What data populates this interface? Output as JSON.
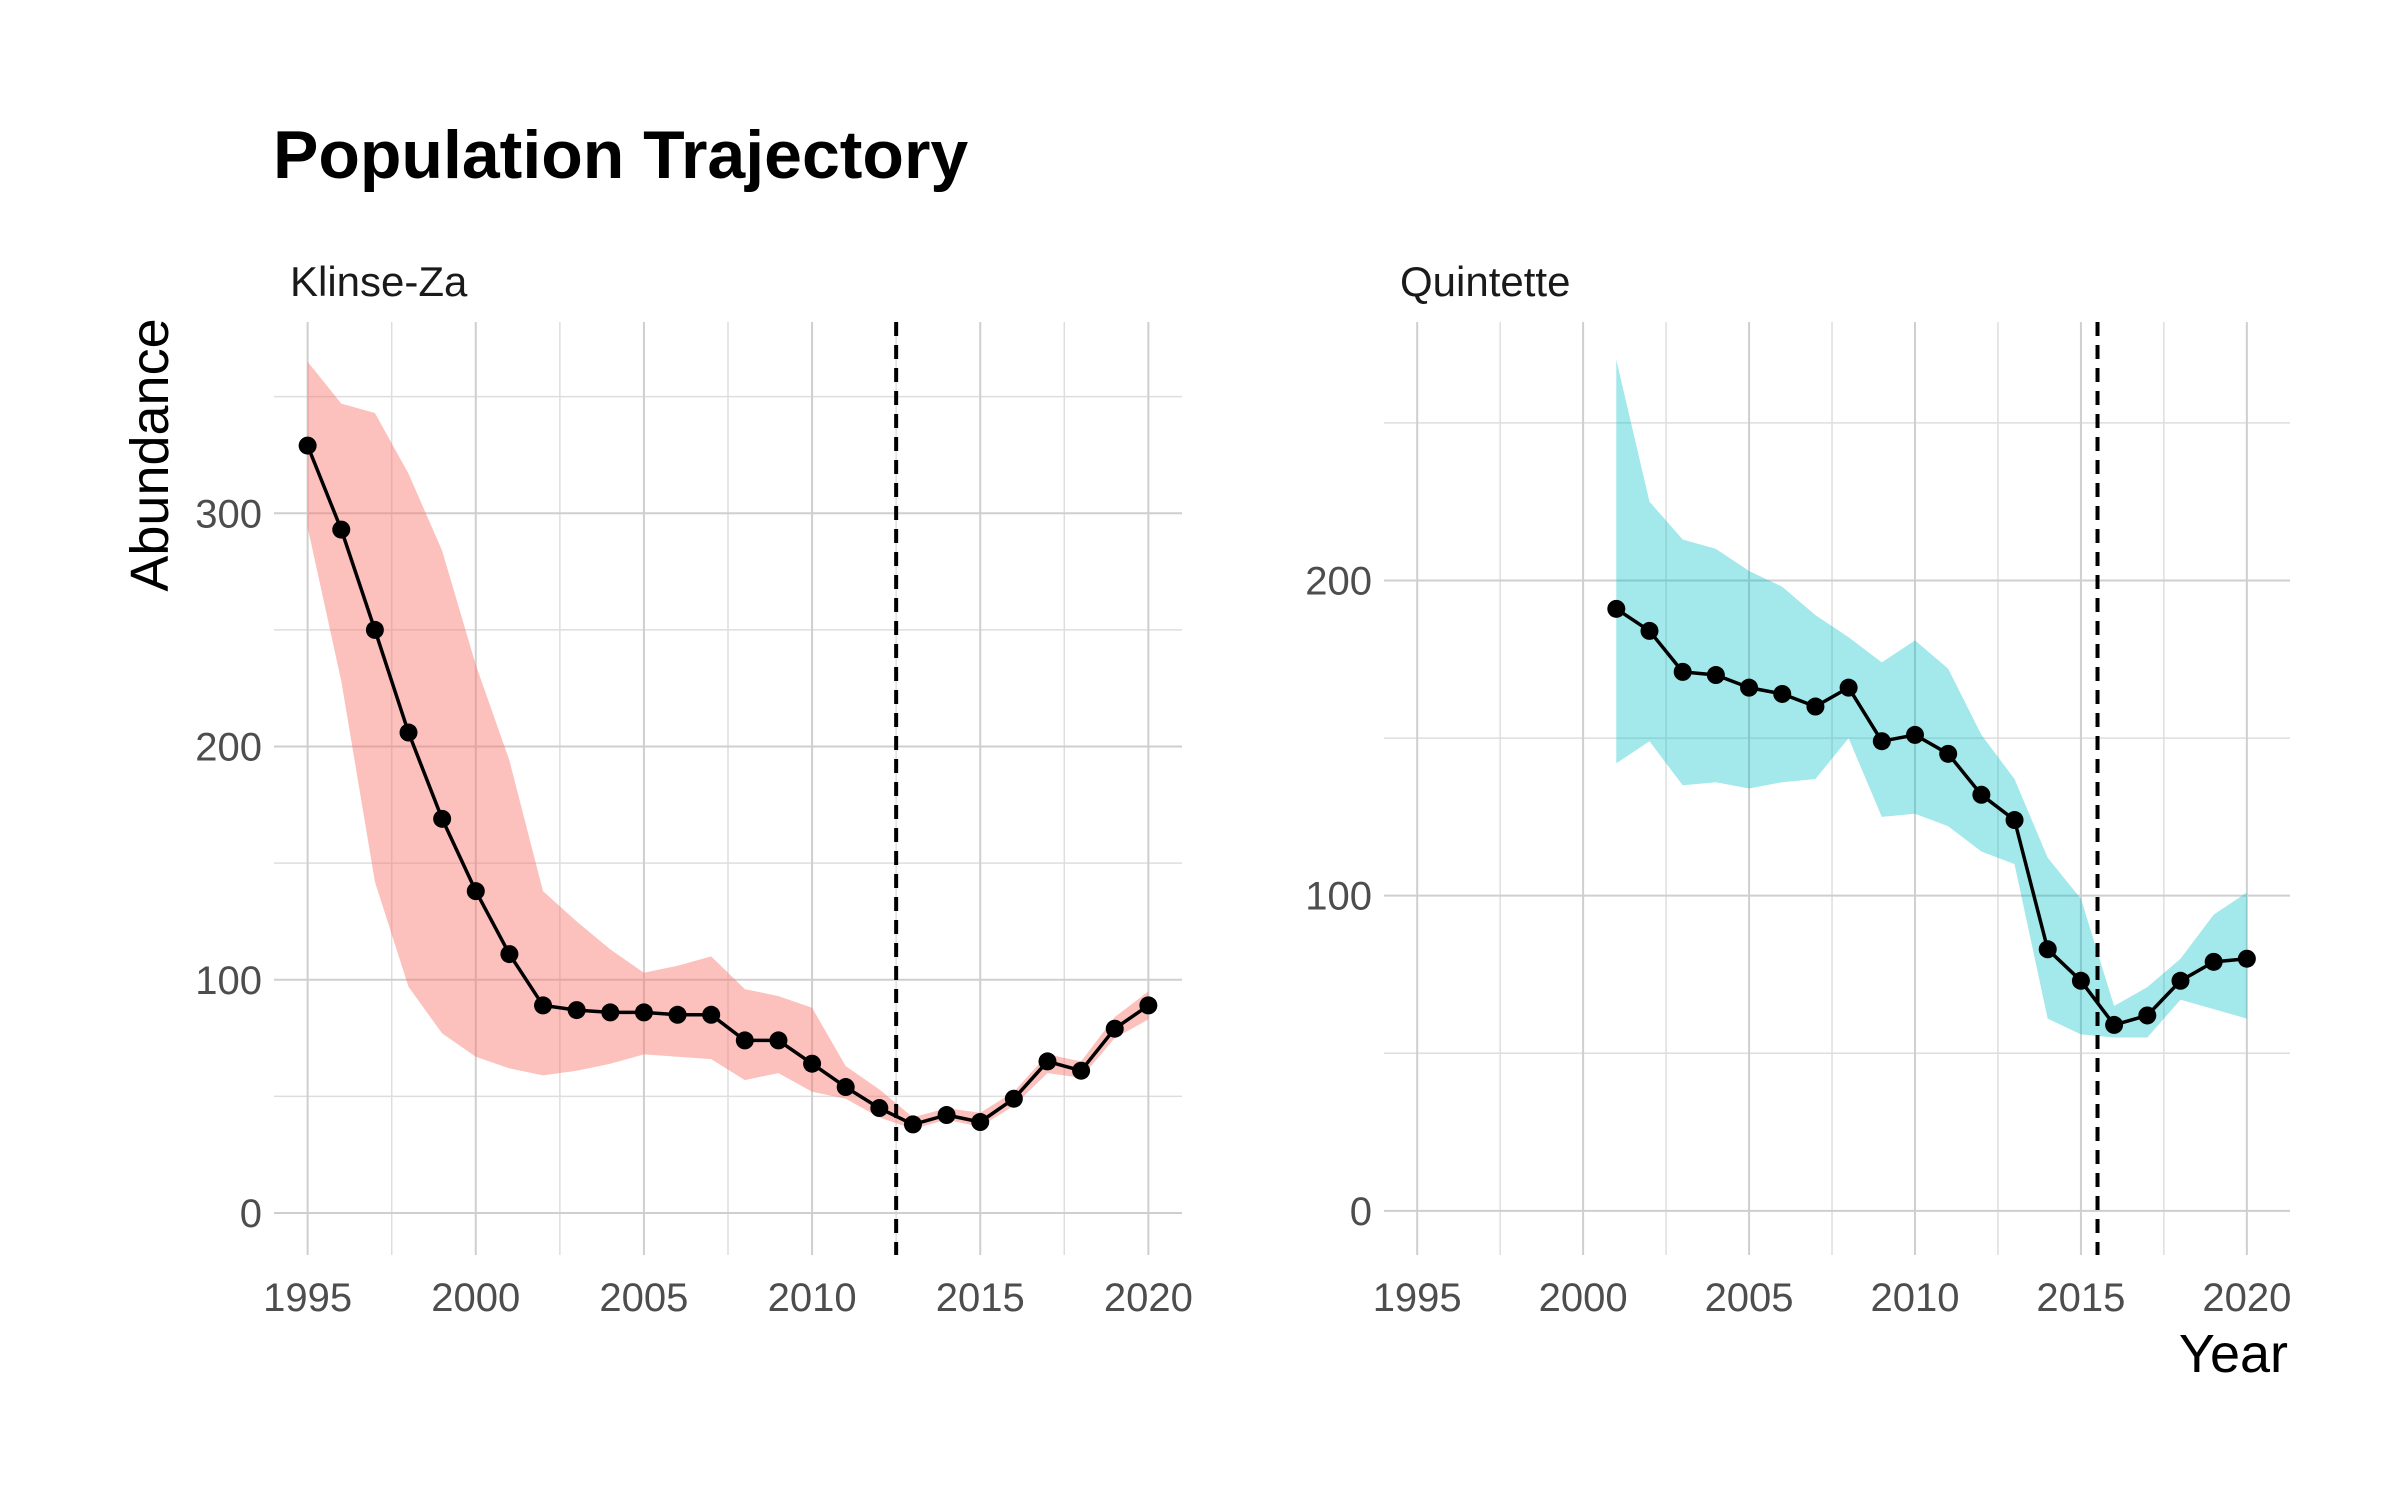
{
  "title": "Population Trajectory",
  "axes": {
    "ylabel": "Abundance",
    "xlabel": "Year"
  },
  "chart_data": [
    {
      "type": "line",
      "facet": "Klinse-Za",
      "ribbon_color": "#F8766D",
      "ribbon_opacity": 0.45,
      "xlim": [
        1994,
        2021
      ],
      "ylim": [
        -18,
        382
      ],
      "x_ticks": [
        1995,
        2000,
        2005,
        2010,
        2015,
        2020
      ],
      "y_ticks": [
        0,
        100,
        200,
        300
      ],
      "grid": true,
      "intervention_year": 2012.5,
      "series": [
        {
          "x": [
            1995,
            1996,
            1997,
            1998,
            1999,
            2000,
            2001,
            2002,
            2003,
            2004,
            2005,
            2006,
            2007,
            2008,
            2009,
            2010,
            2011,
            2012,
            2013,
            2014,
            2015,
            2016,
            2017,
            2018,
            2019,
            2020
          ],
          "y": [
            329,
            293,
            250,
            206,
            169,
            138,
            111,
            89,
            87,
            86,
            86,
            85,
            85,
            74,
            74,
            64,
            54,
            45,
            38,
            42,
            39,
            49,
            65,
            61,
            79,
            89
          ],
          "lower": [
            294,
            228,
            142,
            97,
            77,
            67,
            62,
            59,
            61,
            64,
            68,
            67,
            66,
            57,
            60,
            52,
            49,
            41,
            36,
            40,
            37,
            46,
            60,
            58,
            75,
            83
          ],
          "upper": [
            365,
            347,
            343,
            317,
            284,
            235,
            194,
            138,
            125,
            113,
            103,
            106,
            110,
            96,
            93,
            88,
            63,
            53,
            41,
            45,
            43,
            52,
            68,
            65,
            84,
            95
          ]
        }
      ]
    },
    {
      "type": "line",
      "facet": "Quintette",
      "ribbon_color": "#00BFC4",
      "ribbon_opacity": 0.36,
      "xlim": [
        1994,
        2021.3
      ],
      "ylim": [
        -14,
        282
      ],
      "x_ticks": [
        1995,
        2000,
        2005,
        2010,
        2015,
        2020
      ],
      "y_ticks": [
        0,
        100,
        200
      ],
      "grid": true,
      "intervention_year": 2015.5,
      "series": [
        {
          "x": [
            2001,
            2002,
            2003,
            2004,
            2005,
            2006,
            2007,
            2008,
            2009,
            2010,
            2011,
            2012,
            2013,
            2014,
            2015,
            2016,
            2017,
            2018,
            2019,
            2020
          ],
          "y": [
            191,
            184,
            171,
            170,
            166,
            164,
            160,
            166,
            149,
            151,
            145,
            132,
            124,
            83,
            73,
            59,
            62,
            73,
            79,
            80
          ],
          "lower": [
            142,
            149,
            135,
            136,
            134,
            136,
            137,
            150,
            125,
            126,
            122,
            114,
            110,
            61,
            56,
            55,
            55,
            67,
            64,
            61
          ],
          "upper": [
            270,
            225,
            213,
            210,
            203,
            198,
            189,
            182,
            174,
            181,
            172,
            151,
            137,
            112,
            99,
            65,
            71,
            80,
            94,
            101
          ]
        }
      ]
    }
  ]
}
